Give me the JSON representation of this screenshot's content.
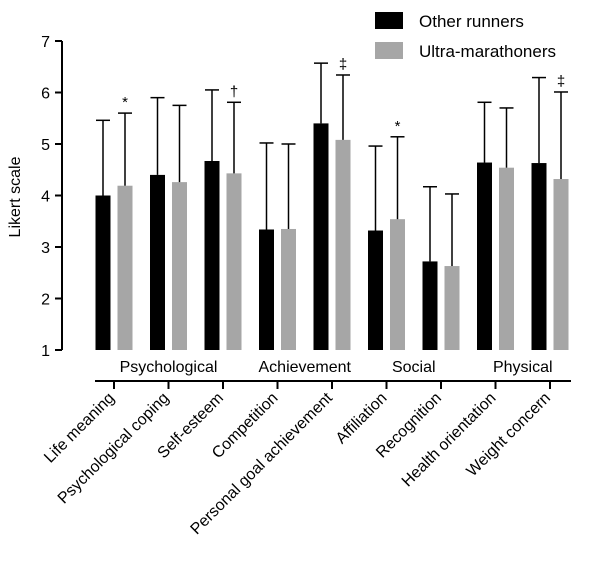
{
  "chart_data": {
    "type": "bar",
    "title": "",
    "xlabel": "",
    "ylabel": "Likert scale",
    "ylim": [
      1,
      7
    ],
    "yticks": [
      1,
      2,
      3,
      4,
      5,
      6,
      7
    ],
    "grid": false,
    "legend": "top-right",
    "categories": [
      "Life meaning",
      "Psychological coping",
      "Self-esteem",
      "Competition",
      "Personal goal achievement",
      "Affiliation",
      "Recognition",
      "Health orientation",
      "Weight concern"
    ],
    "groups": [
      {
        "label": "Psychological",
        "categories": [
          "Life meaning",
          "Psychological coping",
          "Self-esteem"
        ]
      },
      {
        "label": "Achievement",
        "categories": [
          "Competition",
          "Personal goal achievement"
        ]
      },
      {
        "label": "Social",
        "categories": [
          "Affiliation",
          "Recognition"
        ]
      },
      {
        "label": "Physical",
        "categories": [
          "Health orientation",
          "Weight concern"
        ]
      }
    ],
    "series": [
      {
        "name": "Other runners",
        "color": "#000000",
        "values": [
          4.0,
          4.4,
          4.67,
          3.34,
          5.4,
          3.32,
          2.72,
          4.64,
          4.63
        ],
        "error": [
          1.46,
          1.5,
          1.38,
          1.68,
          1.17,
          1.64,
          1.45,
          1.17,
          1.66
        ]
      },
      {
        "name": "Ultra-marathoners",
        "color": "#a6a6a6",
        "values": [
          4.19,
          4.26,
          4.43,
          3.35,
          5.08,
          3.54,
          2.63,
          4.54,
          4.32
        ],
        "error": [
          1.41,
          1.49,
          1.38,
          1.65,
          1.26,
          1.6,
          1.4,
          1.16,
          1.69
        ]
      }
    ],
    "annotations": [
      {
        "category": "Life meaning",
        "series": 1,
        "text": "*"
      },
      {
        "category": "Self-esteem",
        "series": 1,
        "text": "†"
      },
      {
        "category": "Personal goal achievement",
        "series": 1,
        "text": "‡"
      },
      {
        "category": "Affiliation",
        "series": 1,
        "text": "*"
      },
      {
        "category": "Weight concern",
        "series": 1,
        "text": "‡"
      }
    ]
  }
}
